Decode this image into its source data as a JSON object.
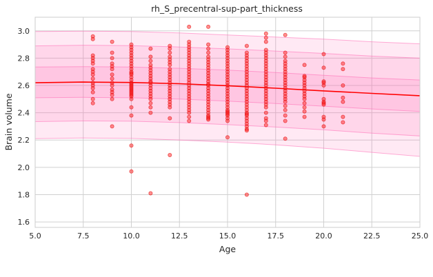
{
  "chart_data": {
    "type": "scatter",
    "title": "rh_S_precentral-sup-part_thickness",
    "xlabel": "Age",
    "ylabel": "Brain volume",
    "xlim": [
      5.0,
      25.0
    ],
    "ylim": [
      1.56,
      3.1
    ],
    "xticks": [
      5.0,
      7.5,
      10.0,
      12.5,
      15.0,
      17.5,
      20.0,
      22.5,
      25.0
    ],
    "xtick_labels": [
      "5.0",
      "7.5",
      "10.0",
      "12.5",
      "15.0",
      "17.5",
      "20.0",
      "22.5",
      "25.0"
    ],
    "yticks": [
      1.6,
      1.8,
      2.0,
      2.2,
      2.4,
      2.6,
      2.8,
      3.0
    ],
    "ytick_labels": [
      "1.6",
      "1.8",
      "2.0",
      "2.2",
      "2.4",
      "2.6",
      "2.8",
      "3.0"
    ],
    "grid": true,
    "colors": {
      "points": "#ff2020",
      "trend": "#ff0000",
      "band": "#ff69b4",
      "grid": "#d0d0d0"
    },
    "trend": {
      "x": [
        5,
        7.5,
        10,
        12.5,
        15,
        17.5,
        20,
        22.5,
        25
      ],
      "y": [
        2.62,
        2.625,
        2.622,
        2.613,
        2.598,
        2.58,
        2.56,
        2.542,
        2.525
      ]
    },
    "bands": [
      {
        "x": [
          5,
          7.5,
          10,
          12.5,
          15,
          17.5,
          20,
          22.5,
          25
        ],
        "lower": [
          2.21,
          2.215,
          2.212,
          2.2,
          2.185,
          2.165,
          2.14,
          2.11,
          2.08
        ],
        "upper": [
          2.995,
          2.998,
          2.995,
          2.985,
          2.97,
          2.955,
          2.94,
          2.92,
          2.905
        ]
      },
      {
        "x": [
          5,
          7.5,
          10,
          12.5,
          15,
          17.5,
          20,
          22.5,
          25
        ],
        "lower": [
          2.335,
          2.34,
          2.338,
          2.328,
          2.313,
          2.295,
          2.275,
          2.25,
          2.23
        ],
        "upper": [
          2.89,
          2.895,
          2.892,
          2.882,
          2.868,
          2.852,
          2.835,
          2.815,
          2.8
        ]
      },
      {
        "x": [
          5,
          7.5,
          10,
          12.5,
          15,
          17.5,
          20,
          22.5,
          25
        ],
        "lower": [
          2.51,
          2.513,
          2.51,
          2.5,
          2.485,
          2.468,
          2.448,
          2.428,
          2.41
        ],
        "upper": [
          2.735,
          2.738,
          2.735,
          2.726,
          2.712,
          2.695,
          2.675,
          2.655,
          2.64
        ]
      }
    ],
    "points": {
      "x": [
        8,
        8,
        8,
        8,
        8,
        8,
        8,
        8,
        8,
        8,
        8,
        8,
        8,
        8,
        8,
        8,
        9,
        9,
        9,
        9,
        9,
        9,
        9,
        9,
        9,
        9,
        9,
        9,
        9,
        9,
        9,
        10,
        10,
        10,
        10,
        10,
        10,
        10,
        10,
        10,
        10,
        10,
        10,
        10,
        10,
        10,
        10,
        10,
        10,
        10,
        10,
        10,
        10,
        10,
        10,
        10,
        10,
        10,
        10,
        10,
        10,
        10,
        11,
        11,
        11,
        11,
        11,
        11,
        11,
        11,
        11,
        11,
        11,
        11,
        11,
        11,
        11,
        11,
        11,
        11,
        11,
        11,
        11,
        12,
        12,
        12,
        12,
        12,
        12,
        12,
        12,
        12,
        12,
        12,
        12,
        12,
        12,
        12,
        12,
        12,
        12,
        12,
        12,
        12,
        12,
        12,
        12,
        13,
        13,
        13,
        13,
        13,
        13,
        13,
        13,
        13,
        13,
        13,
        13,
        13,
        13,
        13,
        13,
        13,
        13,
        13,
        13,
        13,
        13,
        13,
        13,
        13,
        13,
        13,
        13,
        13,
        13,
        14,
        14,
        14,
        14,
        14,
        14,
        14,
        14,
        14,
        14,
        14,
        14,
        14,
        14,
        14,
        14,
        14,
        14,
        14,
        14,
        14,
        14,
        14,
        14,
        14,
        14,
        14,
        14,
        14,
        14,
        15,
        15,
        15,
        15,
        15,
        15,
        15,
        15,
        15,
        15,
        15,
        15,
        15,
        15,
        15,
        15,
        15,
        15,
        15,
        15,
        15,
        15,
        15,
        15,
        15,
        15,
        15,
        15,
        15,
        15,
        15,
        16,
        16,
        16,
        16,
        16,
        16,
        16,
        16,
        16,
        16,
        16,
        16,
        16,
        16,
        16,
        16,
        16,
        16,
        16,
        16,
        16,
        16,
        16,
        16,
        16,
        16,
        16,
        16,
        16,
        16,
        16,
        16,
        16,
        17,
        17,
        17,
        17,
        17,
        17,
        17,
        17,
        17,
        17,
        17,
        17,
        17,
        17,
        17,
        17,
        17,
        17,
        17,
        17,
        17,
        17,
        17,
        17,
        17,
        17,
        17,
        17,
        17,
        18,
        18,
        18,
        18,
        18,
        18,
        18,
        18,
        18,
        18,
        18,
        18,
        18,
        18,
        18,
        18,
        18,
        18,
        18,
        18,
        18,
        18,
        18,
        18,
        19,
        19,
        19,
        19,
        19,
        19,
        19,
        19,
        19,
        19,
        19,
        19,
        19,
        19,
        19,
        20,
        20,
        20,
        20,
        20,
        20,
        20,
        20,
        20,
        20,
        20,
        20,
        21,
        21,
        21,
        21,
        21,
        21,
        21
      ],
      "y": [
        2.96,
        2.94,
        2.82,
        2.8,
        2.78,
        2.76,
        2.72,
        2.7,
        2.68,
        2.65,
        2.62,
        2.6,
        2.58,
        2.55,
        2.5,
        2.47,
        2.92,
        2.84,
        2.8,
        2.76,
        2.74,
        2.72,
        2.68,
        2.65,
        2.62,
        2.6,
        2.57,
        2.55,
        2.53,
        2.5,
        2.3,
        2.9,
        2.88,
        2.86,
        2.84,
        2.82,
        2.8,
        2.78,
        2.76,
        2.74,
        2.72,
        2.7,
        2.69,
        2.68,
        2.66,
        2.64,
        2.62,
        2.61,
        2.6,
        2.59,
        2.58,
        2.57,
        2.56,
        2.55,
        2.54,
        2.53,
        2.52,
        2.5,
        2.44,
        2.38,
        2.16,
        1.97,
        2.87,
        2.81,
        2.78,
        2.75,
        2.73,
        2.71,
        2.69,
        2.67,
        2.65,
        2.63,
        2.62,
        2.6,
        2.58,
        2.56,
        2.54,
        2.52,
        2.5,
        2.47,
        2.44,
        2.4,
        1.81,
        2.89,
        2.87,
        2.84,
        2.81,
        2.79,
        2.77,
        2.75,
        2.72,
        2.7,
        2.68,
        2.66,
        2.64,
        2.62,
        2.6,
        2.58,
        2.56,
        2.54,
        2.52,
        2.5,
        2.48,
        2.46,
        2.44,
        2.36,
        2.09,
        3.03,
        2.92,
        2.9,
        2.88,
        2.86,
        2.84,
        2.82,
        2.8,
        2.78,
        2.76,
        2.74,
        2.72,
        2.7,
        2.68,
        2.66,
        2.64,
        2.62,
        2.6,
        2.58,
        2.56,
        2.54,
        2.52,
        2.5,
        2.48,
        2.46,
        2.44,
        2.42,
        2.4,
        2.37,
        2.34,
        3.03,
        2.9,
        2.87,
        2.84,
        2.81,
        2.79,
        2.77,
        2.75,
        2.73,
        2.71,
        2.69,
        2.67,
        2.65,
        2.63,
        2.61,
        2.6,
        2.58,
        2.56,
        2.54,
        2.52,
        2.5,
        2.48,
        2.46,
        2.44,
        2.42,
        2.4,
        2.38,
        2.37,
        2.36,
        2.35,
        2.88,
        2.86,
        2.84,
        2.82,
        2.8,
        2.78,
        2.76,
        2.74,
        2.72,
        2.7,
        2.68,
        2.66,
        2.64,
        2.62,
        2.6,
        2.58,
        2.56,
        2.54,
        2.52,
        2.5,
        2.48,
        2.46,
        2.44,
        2.42,
        2.41,
        2.4,
        2.39,
        2.38,
        2.36,
        2.34,
        2.22,
        2.89,
        2.84,
        2.82,
        2.8,
        2.78,
        2.76,
        2.74,
        2.72,
        2.7,
        2.68,
        2.66,
        2.64,
        2.62,
        2.6,
        2.58,
        2.56,
        2.54,
        2.52,
        2.5,
        2.48,
        2.46,
        2.44,
        2.42,
        2.4,
        2.39,
        2.38,
        2.36,
        2.34,
        2.32,
        2.3,
        2.28,
        2.27,
        1.8,
        2.98,
        2.95,
        2.92,
        2.86,
        2.84,
        2.82,
        2.8,
        2.78,
        2.76,
        2.74,
        2.72,
        2.7,
        2.68,
        2.66,
        2.64,
        2.62,
        2.6,
        2.58,
        2.56,
        2.54,
        2.52,
        2.5,
        2.48,
        2.46,
        2.44,
        2.4,
        2.36,
        2.34,
        2.31,
        2.97,
        2.84,
        2.81,
        2.78,
        2.76,
        2.74,
        2.72,
        2.7,
        2.68,
        2.66,
        2.64,
        2.62,
        2.6,
        2.58,
        2.56,
        2.54,
        2.52,
        2.5,
        2.48,
        2.45,
        2.42,
        2.38,
        2.34,
        2.21,
        2.75,
        2.67,
        2.66,
        2.64,
        2.62,
        2.6,
        2.58,
        2.56,
        2.54,
        2.52,
        2.5,
        2.47,
        2.44,
        2.41,
        2.37,
        2.83,
        2.73,
        2.63,
        2.62,
        2.6,
        2.5,
        2.48,
        2.47,
        2.46,
        2.37,
        2.35,
        2.3,
        2.76,
        2.72,
        2.6,
        2.51,
        2.48,
        2.37,
        2.33
      ]
    }
  }
}
